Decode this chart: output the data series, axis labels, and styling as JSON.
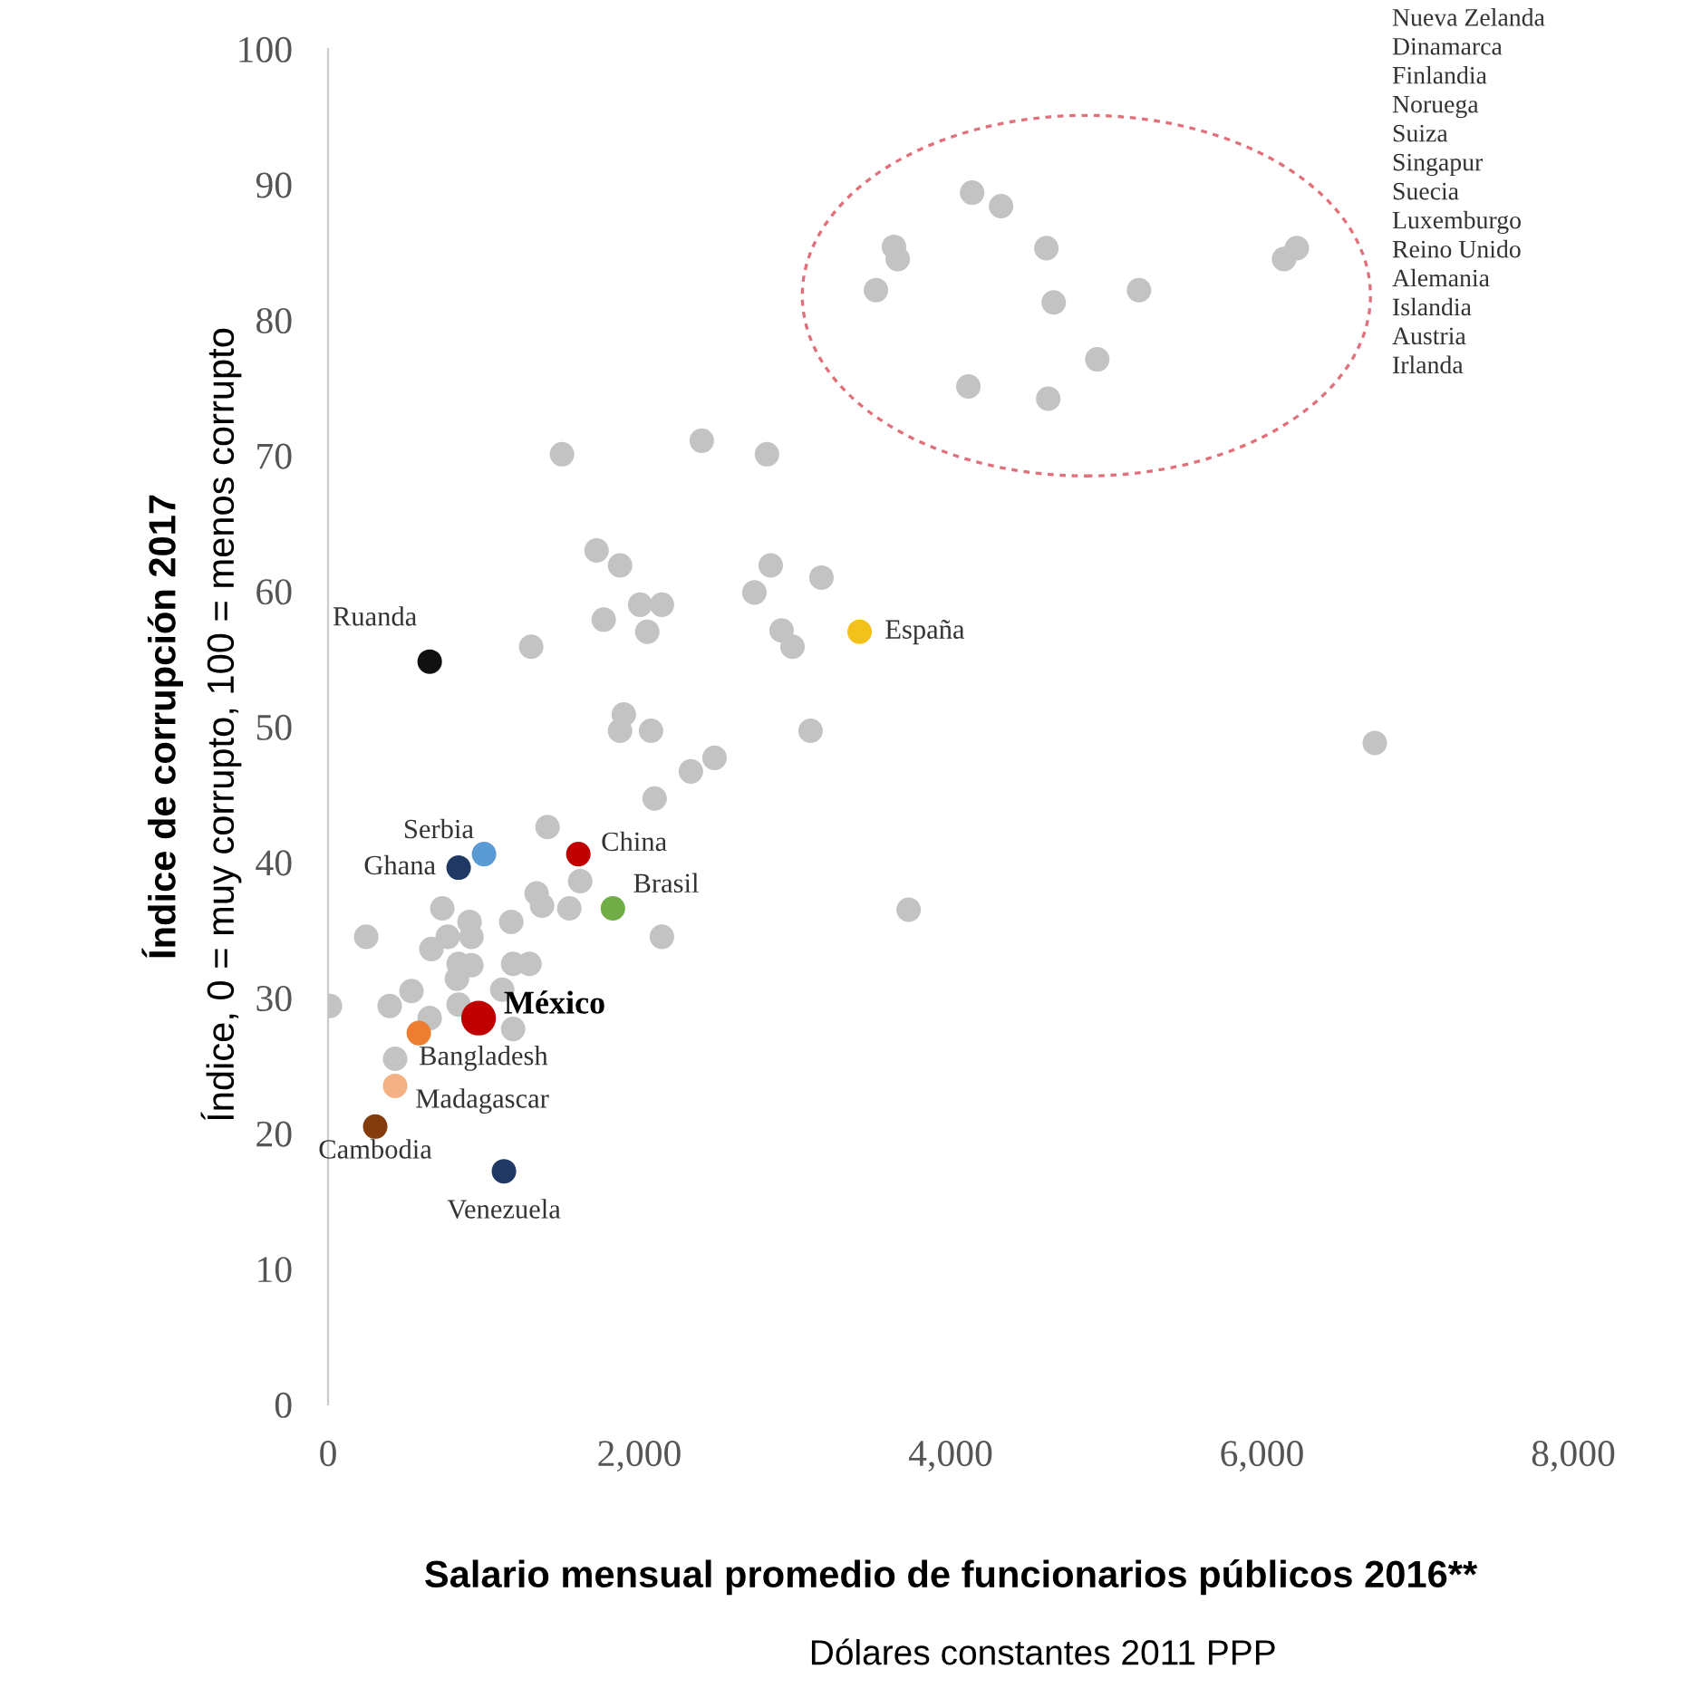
{
  "chart_data": {
    "type": "scatter",
    "xlabel": "Salario mensual promedio de funcionarios públicos 2016**",
    "ylabel": "Índice de corrupción 2017",
    "xlim": [
      0,
      8000
    ],
    "ylim": [
      0,
      100
    ],
    "xticks": [
      {
        "value": 0,
        "label": "0"
      },
      {
        "value": 2000,
        "label": "2,000"
      },
      {
        "value": 4000,
        "label": "4,000"
      },
      {
        "value": 6000,
        "label": "6,000"
      },
      {
        "value": 8000,
        "label": "8,000"
      }
    ],
    "yticks": [
      0,
      10,
      20,
      30,
      40,
      50,
      60,
      70,
      80,
      90,
      100
    ],
    "grid": false,
    "legend": false,
    "marker": "circle",
    "series": [
      {
        "color": "#c3c3c3",
        "x": [
          4138,
          4324,
          3636,
          3660,
          4615,
          3520,
          4662,
          5210,
          6224,
          6142,
          4942,
          4114,
          4627,
          6725,
          3730,
          3170,
          1503,
          2401,
          2820,
          1725,
          1876,
          2844,
          2739,
          1771,
          2005,
          2145,
          2051,
          1305,
          2914,
          2984,
          1900,
          1876,
          2075,
          3100,
          2483,
          2331,
          2098,
          1410,
          1620,
          1340,
          1375,
          1550,
          734,
          1177,
          2145,
          245,
          909,
          921,
          769,
          664,
          839,
          921,
          1189,
          1294,
          828,
          1119,
          536,
          12,
          396,
          839,
          653,
          1189,
          431,
          653,
          1002,
          839,
          1608,
          1830,
          3415,
          967,
          583,
          431,
          303,
          1130
        ],
        "values": [
          89.4,
          88.4,
          85.4,
          84.5,
          85.3,
          82.2,
          81.3,
          82.2,
          85.3,
          84.5,
          77.1,
          75.1,
          74.2,
          48.8,
          36.5,
          61,
          70.1,
          71.1,
          70.1,
          63,
          61.9,
          61.9,
          59.9,
          57.9,
          59,
          59,
          57,
          55.9,
          57.1,
          55.9,
          50.9,
          49.7,
          49.7,
          49.7,
          47.7,
          46.7,
          44.7,
          42.6,
          38.6,
          37.7,
          36.8,
          36.6,
          36.6,
          35.6,
          34.5,
          34.5,
          35.6,
          34.5,
          34.5,
          33.6,
          32.5,
          32.4,
          32.5,
          32.5,
          31.4,
          30.6,
          30.5,
          29.4,
          29.4,
          29.5,
          28.5,
          27.7,
          25.5,
          54.8,
          40.6,
          39.6,
          40.6,
          36.6,
          57,
          28.5,
          27.4,
          23.5,
          20.5,
          17.2
        ],
        "sizes": [
          0.5,
          0.5,
          0.5,
          0.5,
          0.5,
          0.5,
          0.5,
          0.5,
          0.5,
          0.5,
          0.5,
          0.5,
          0.5,
          0.5,
          0.5,
          0.5,
          0.5,
          0.5,
          0.5,
          0.5,
          0.5,
          0.5,
          0.5,
          0.5,
          0.5,
          0.5,
          0.5,
          0.5,
          0.5,
          0.5,
          0.5,
          0.5,
          0.5,
          0.5,
          0.5,
          0.5,
          0.5,
          0.5,
          0.5,
          0.5,
          0.5,
          0.5,
          0.5,
          0.5,
          0.5,
          0.5,
          0.5,
          0.5,
          0.5,
          0.5,
          0.5,
          0.5,
          0.5,
          0.5,
          0.5,
          0.5,
          0.5,
          0.5,
          0.5,
          0.5,
          0.5,
          0.5,
          0.5,
          0.5,
          0.5,
          0.5,
          0.5,
          0.5,
          0.5,
          1,
          0.5,
          0.5,
          0.5,
          0.5
        ],
        "colors": [
          "#c3c3c3",
          "#c3c3c3",
          "#c3c3c3",
          "#c3c3c3",
          "#c3c3c3",
          "#c3c3c3",
          "#c3c3c3",
          "#c3c3c3",
          "#c3c3c3",
          "#c3c3c3",
          "#c3c3c3",
          "#c3c3c3",
          "#c3c3c3",
          "#c3c3c3",
          "#c3c3c3",
          "#c3c3c3",
          "#c3c3c3",
          "#c3c3c3",
          "#c3c3c3",
          "#c3c3c3",
          "#c3c3c3",
          "#c3c3c3",
          "#c3c3c3",
          "#c3c3c3",
          "#c3c3c3",
          "#c3c3c3",
          "#c3c3c3",
          "#c3c3c3",
          "#c3c3c3",
          "#c3c3c3",
          "#c3c3c3",
          "#c3c3c3",
          "#c3c3c3",
          "#c3c3c3",
          "#c3c3c3",
          "#c3c3c3",
          "#c3c3c3",
          "#c3c3c3",
          "#c3c3c3",
          "#c3c3c3",
          "#c3c3c3",
          "#c3c3c3",
          "#c3c3c3",
          "#c3c3c3",
          "#c3c3c3",
          "#c3c3c3",
          "#c3c3c3",
          "#c3c3c3",
          "#c3c3c3",
          "#c3c3c3",
          "#c3c3c3",
          "#c3c3c3",
          "#c3c3c3",
          "#c3c3c3",
          "#c3c3c3",
          "#c3c3c3",
          "#c3c3c3",
          "#c3c3c3",
          "#c3c3c3",
          "#c3c3c3",
          "#c3c3c3",
          "#c3c3c3",
          "#c3c3c3",
          "#111111",
          "#5b9bd5",
          "#1f3864",
          "#c00000",
          "#70ad47",
          "#f2c21b",
          "#c00000",
          "#ed7d31",
          "#f4b183",
          "#843c0c",
          "#1f3864"
        ]
      }
    ],
    "annotations": [
      {
        "text": "Ruanda",
        "x": 653,
        "y": 54.8
      },
      {
        "text": "Serbia",
        "x": 1002,
        "y": 40.6
      },
      {
        "text": "Ghana",
        "x": 839,
        "y": 39.6
      },
      {
        "text": "China",
        "x": 1608,
        "y": 40.6
      },
      {
        "text": "Brasil",
        "x": 1830,
        "y": 36.6
      },
      {
        "text": "España",
        "x": 3415,
        "y": 57
      },
      {
        "text": "México",
        "x": 967,
        "y": 28.5
      },
      {
        "text": "Bangladesh",
        "x": 583,
        "y": 27.4
      },
      {
        "text": "Madagascar",
        "x": 431,
        "y": 23.5
      },
      {
        "text": "Cambodia",
        "x": 303,
        "y": 20.5
      },
      {
        "text": "Venezuela",
        "x": 1130,
        "y": 17.2
      },
      "Nueva Zelanda\nDinamarca\nFinlandia\nNoruega\nSuiza\nSingapur\nSuecia\nLuxemburgo\nReino Unido\nAlemania\nIslandia\nAustria\nIrlanda",
      "Índice, 0 = muy corrupto, 100 = menos corrupto",
      "Dólares constantes 2011 PPP"
    ]
  }
}
